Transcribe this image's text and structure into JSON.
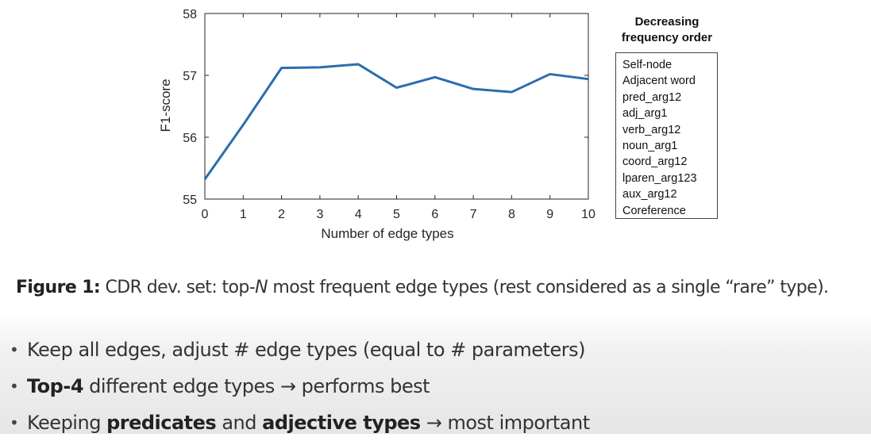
{
  "chart_data": {
    "type": "line",
    "x": [
      0,
      1,
      2,
      3,
      4,
      5,
      6,
      7,
      8,
      9,
      10
    ],
    "series": [
      {
        "values": [
          55.32,
          56.2,
          57.12,
          57.13,
          57.18,
          56.8,
          56.97,
          56.78,
          56.73,
          57.02,
          56.94
        ]
      }
    ],
    "xlabel": "Number of edge types",
    "ylabel": "F1-score",
    "xlim": [
      0,
      10
    ],
    "ylim": [
      55,
      58
    ],
    "xticks": [
      "0",
      "1",
      "2",
      "3",
      "4",
      "5",
      "6",
      "7",
      "8",
      "9",
      "10"
    ],
    "yticks": [
      "55",
      "56",
      "57",
      "58"
    ],
    "line_color": "#2a6ead",
    "grid": false
  },
  "legend": {
    "title_line1": "Decreasing",
    "title_line2": "frequency order",
    "items": [
      "Self-node",
      "Adjacent word",
      "pred_arg12",
      "adj_arg1",
      "verb_arg12",
      "noun_arg1",
      "coord_arg12",
      "lparen_arg123",
      "aux_arg12",
      "Coreference"
    ]
  },
  "caption": {
    "label": "Figure 1:",
    "text_before": " CDR dev. set: top-",
    "italic": "N",
    "text_after": " most frequent edge types (rest considered as a single “rare” type)."
  },
  "bullets": {
    "b1": {
      "text": "Keep all edges, adjust # edge types (equal to # parameters)"
    },
    "b2": {
      "bold": "Top-4",
      "text": " different edge types → performs best"
    },
    "b3": {
      "pre": "Keeping ",
      "bold1": "predicates",
      "mid": " and ",
      "bold2": "adjective types",
      "post": " → most important"
    },
    "dot": "•"
  }
}
